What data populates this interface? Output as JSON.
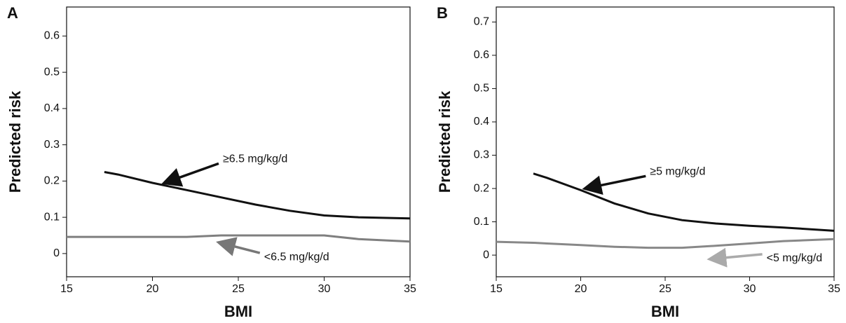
{
  "chart_data": [
    {
      "type": "line",
      "panel_label": "A",
      "ylabel": "Predicted risk",
      "xlabel": "BMI",
      "x": [
        15,
        17.2,
        18,
        20,
        22,
        24,
        26,
        28,
        30,
        32,
        35
      ],
      "series": [
        {
          "color": "#111111",
          "values": [
            null,
            0.225,
            0.218,
            0.195,
            0.175,
            0.155,
            0.135,
            0.118,
            0.105,
            0.1,
            0.097
          ]
        },
        {
          "color": "#7f7f7f",
          "values": [
            0.046,
            0.046,
            0.046,
            0.046,
            0.046,
            0.05,
            0.05,
            0.05,
            0.05,
            0.04,
            0.033
          ]
        }
      ],
      "annotations": [
        "≥6.5 mg/kg/d",
        "<6.5 mg/kg/d"
      ],
      "xlim": [
        15,
        35
      ],
      "xticks": [
        15,
        20,
        25,
        30,
        35
      ],
      "ylim": [
        -0.064,
        0.68
      ],
      "yticks": [
        0,
        0.1,
        0.2,
        0.3,
        0.4,
        0.5,
        0.6
      ]
    },
    {
      "type": "line",
      "panel_label": "B",
      "ylabel": "Predicted risk",
      "xlabel": "BMI",
      "x": [
        15,
        17.2,
        18,
        20,
        22,
        24,
        26,
        28,
        30,
        32,
        35
      ],
      "series": [
        {
          "color": "#111111",
          "values": [
            null,
            0.245,
            0.232,
            0.195,
            0.155,
            0.125,
            0.105,
            0.095,
            0.088,
            0.083,
            0.073
          ]
        },
        {
          "color": "#888888",
          "values": [
            0.04,
            0.037,
            0.035,
            0.03,
            0.025,
            0.022,
            0.022,
            0.028,
            0.035,
            0.042,
            0.048
          ]
        }
      ],
      "annotations": [
        "≥5 mg/kg/d",
        "<5 mg/kg/d"
      ],
      "xlim": [
        15,
        35
      ],
      "xticks": [
        15,
        20,
        25,
        30,
        35
      ],
      "ylim": [
        -0.065,
        0.745
      ],
      "yticks": [
        0,
        0.1,
        0.2,
        0.3,
        0.4,
        0.5,
        0.6,
        0.7
      ]
    }
  ]
}
